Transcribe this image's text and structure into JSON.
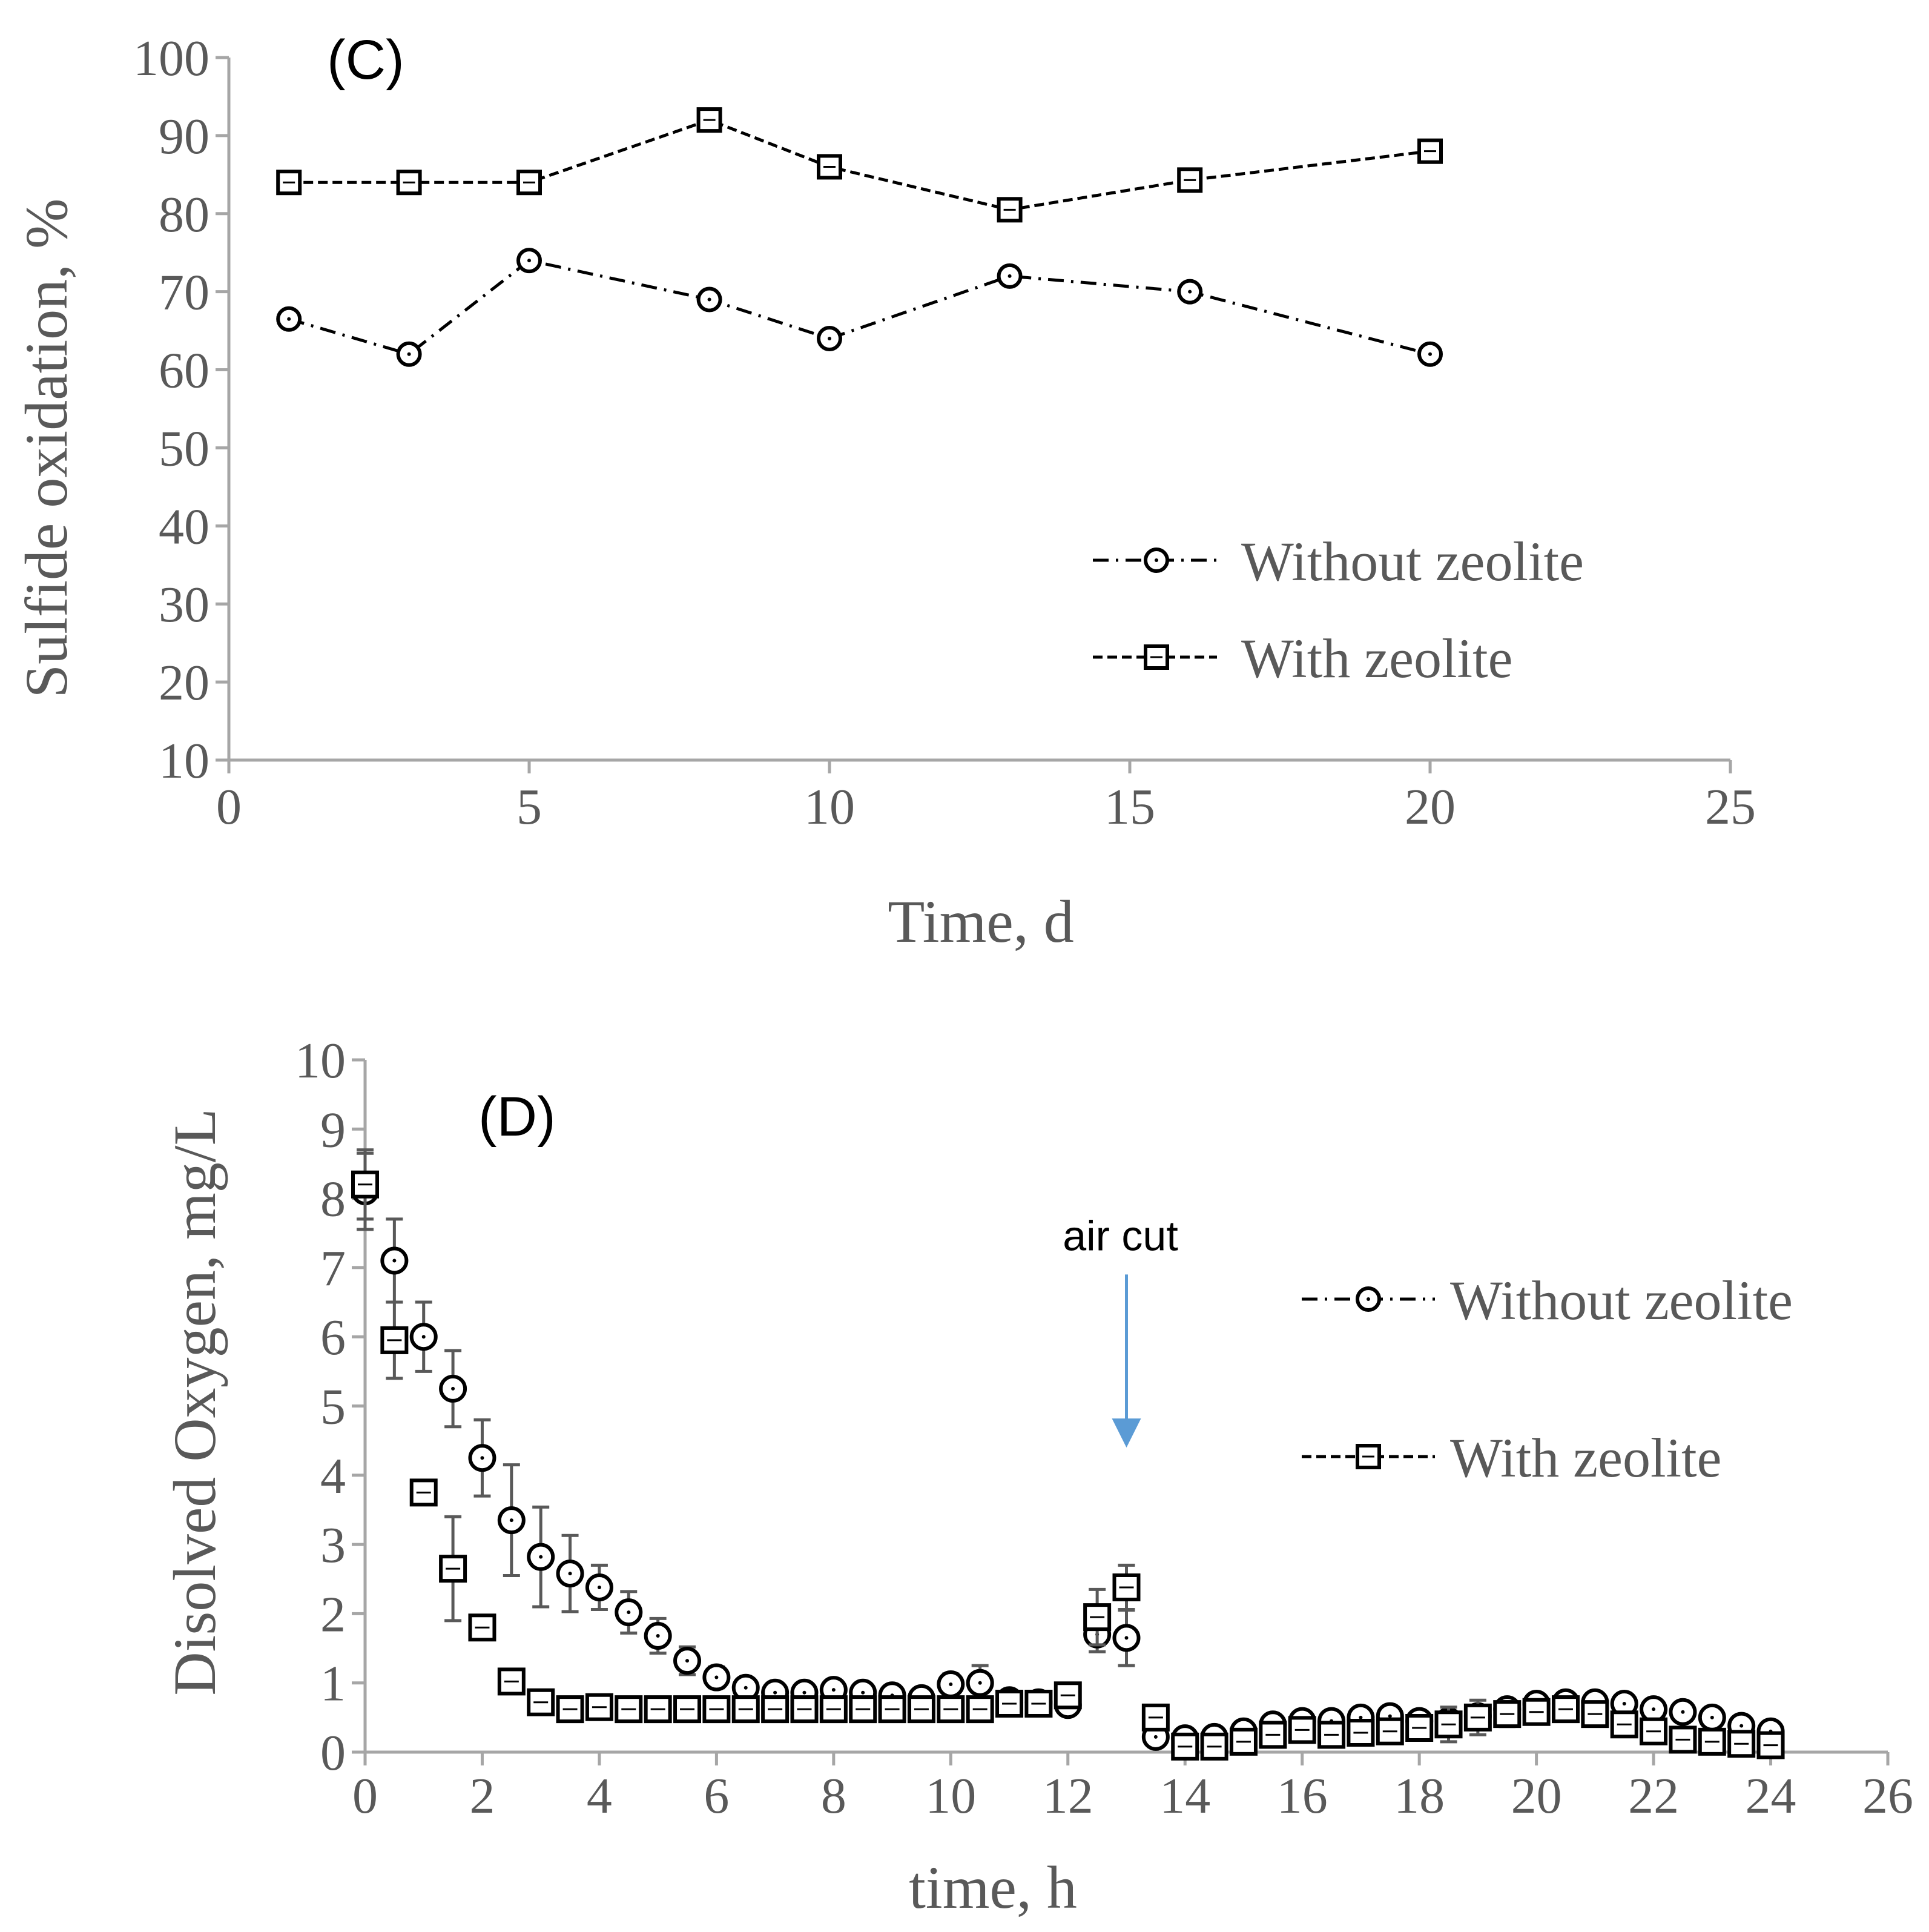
{
  "chart_data": [
    {
      "type": "line",
      "panel_label": "(C)",
      "xlabel": "Time, d",
      "ylabel": "Sulfide oxidation, %",
      "xlim": [
        0,
        25
      ],
      "ylim": [
        10,
        100
      ],
      "xticks": [
        "0",
        "5",
        "10",
        "15",
        "20",
        "25"
      ],
      "yticks": [
        "10",
        "20",
        "30",
        "40",
        "50",
        "60",
        "70",
        "80",
        "90",
        "100"
      ],
      "grid": false,
      "legend_placement": "bottom-right",
      "series": [
        {
          "name": "Without zeolite",
          "marker": "circle",
          "dash": "dash-dot",
          "x": [
            1,
            3,
            5,
            8,
            10,
            13,
            16,
            20
          ],
          "y": [
            66.5,
            62,
            74,
            69,
            64,
            72,
            70,
            62
          ]
        },
        {
          "name": "With zeolite",
          "marker": "square",
          "dash": "dashed",
          "x": [
            1,
            3,
            5,
            8,
            10,
            13,
            16,
            20
          ],
          "y": [
            84,
            84,
            84,
            92,
            86,
            80.5,
            84.3,
            88
          ]
        }
      ]
    },
    {
      "type": "scatter",
      "panel_label": "(D)",
      "xlabel": "time, h",
      "ylabel": "Disolved Oxygen, mg/L",
      "xlim": [
        0,
        26
      ],
      "ylim": [
        0,
        10
      ],
      "xticks": [
        "0",
        "2",
        "4",
        "6",
        "8",
        "10",
        "12",
        "14",
        "16",
        "18",
        "20",
        "22",
        "24",
        "26"
      ],
      "yticks": [
        "0",
        "1",
        "2",
        "3",
        "4",
        "5",
        "6",
        "7",
        "8",
        "9",
        "10"
      ],
      "grid": false,
      "legend_placement": "top-right",
      "annotation": {
        "text": "air cut",
        "x": 13,
        "arrow_from_y": 6.9,
        "arrow_to_y": 4.4
      },
      "series": [
        {
          "name": "Without zeolite",
          "marker": "circle",
          "dash": "dash-dot",
          "x": [
            0,
            0.5,
            1,
            1.5,
            2,
            2.5,
            3,
            3.5,
            4,
            4.5,
            5,
            5.5,
            6,
            6.5,
            7,
            7.5,
            8,
            8.5,
            9,
            9.5,
            10,
            10.5,
            11,
            11.5,
            12,
            12.5,
            13,
            13.5,
            14,
            14.5,
            15,
            15.5,
            16,
            16.5,
            17,
            17.5,
            18,
            18.5,
            19,
            19.5,
            20,
            20.5,
            21,
            21.5,
            22,
            22.5,
            23,
            23.5,
            24
          ],
          "y": [
            8.1,
            7.1,
            6.0,
            5.25,
            4.25,
            3.35,
            2.82,
            2.58,
            2.38,
            2.02,
            1.68,
            1.32,
            1.08,
            0.93,
            0.86,
            0.86,
            0.9,
            0.86,
            0.82,
            0.78,
            0.98,
            1.0,
            0.75,
            0.72,
            0.68,
            1.7,
            1.65,
            0.22,
            0.2,
            0.22,
            0.3,
            0.4,
            0.45,
            0.45,
            0.5,
            0.52,
            0.45,
            0.45,
            0.52,
            0.62,
            0.7,
            0.72,
            0.72,
            0.7,
            0.62,
            0.58,
            0.5,
            0.38,
            0.3
          ],
          "err": [
            0.55,
            0.6,
            0.5,
            0.55,
            0.55,
            0.8,
            0.72,
            0.55,
            0.32,
            0.3,
            0.25,
            0.2,
            0.15,
            0.1,
            0.1,
            0.1,
            0.1,
            0.1,
            0.12,
            0.1,
            0.15,
            0.25,
            0.12,
            0.08,
            0.08,
            0.25,
            0.4,
            0.1,
            0.05,
            0.05,
            0.05,
            0.05,
            0.05,
            0.05,
            0.05,
            0.05,
            0.05,
            0.1,
            0.1,
            0.12,
            0.1,
            0.08,
            0.08,
            0.08,
            0.08,
            0.08,
            0.08,
            0.08,
            0.05
          ]
        },
        {
          "name": "With zeolite",
          "marker": "square",
          "dash": "dashed",
          "x": [
            0,
            0.5,
            1,
            1.5,
            2,
            2.5,
            3,
            3.5,
            4,
            4.5,
            5,
            5.5,
            6,
            6.5,
            7,
            7.5,
            8,
            8.5,
            9,
            9.5,
            10,
            10.5,
            11,
            11.5,
            12,
            12.5,
            13,
            13.5,
            14,
            14.5,
            15,
            15.5,
            16,
            16.5,
            17,
            17.5,
            18,
            18.5,
            19,
            19.5,
            20,
            20.5,
            21,
            21.5,
            22,
            22.5,
            23,
            23.5,
            24
          ],
          "y": [
            8.2,
            5.95,
            3.75,
            2.65,
            1.8,
            1.02,
            0.72,
            0.62,
            0.65,
            0.62,
            0.62,
            0.62,
            0.62,
            0.62,
            0.62,
            0.62,
            0.62,
            0.62,
            0.62,
            0.62,
            0.62,
            0.62,
            0.7,
            0.7,
            0.82,
            1.95,
            2.38,
            0.5,
            0.08,
            0.08,
            0.15,
            0.25,
            0.32,
            0.25,
            0.28,
            0.3,
            0.35,
            0.4,
            0.5,
            0.55,
            0.58,
            0.62,
            0.55,
            0.4,
            0.3,
            0.18,
            0.15,
            0.12,
            0.1
          ],
          "err": [
            0.5,
            0.55,
            0.15,
            0.75,
            0.1,
            0.1,
            0.1,
            0.08,
            0.08,
            0.08,
            0.08,
            0.08,
            0.1,
            0.12,
            0.1,
            0.08,
            0.08,
            0.08,
            0.08,
            0.08,
            0.08,
            0.1,
            0.1,
            0.1,
            0.1,
            0.4,
            0.32,
            0.12,
            0.05,
            0.05,
            0.05,
            0.05,
            0.05,
            0.05,
            0.05,
            0.05,
            0.1,
            0.25,
            0.25,
            0.18,
            0.12,
            0.1,
            0.1,
            0.08,
            0.05,
            0.05,
            0.05,
            0.05,
            0.05
          ]
        }
      ]
    }
  ]
}
